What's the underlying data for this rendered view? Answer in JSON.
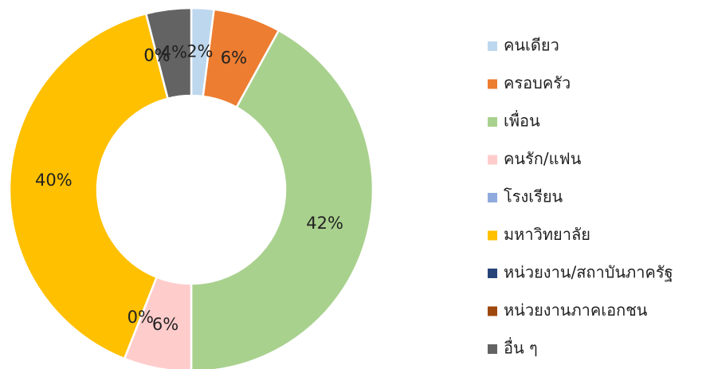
{
  "chart_data": {
    "type": "donut",
    "categories": [
      "คนเดียว",
      "ครอบครัว",
      "เพื่อน",
      "คนรัก/แฟน",
      "โรงเรียน",
      "มหาวิทยาลัย",
      "หน่วยงาน/สถาบันภาครัฐ",
      "หน่วยงานภาคเอกชน",
      "อื่น ๆ"
    ],
    "values": [
      2,
      6,
      42,
      6,
      0,
      40,
      0,
      0,
      4
    ],
    "value_labels": [
      "2%",
      "6%",
      "42%",
      "6%",
      "0%",
      "40%",
      "0%",
      "0%",
      "4%"
    ],
    "colors": [
      "#bdd7ee",
      "#ed7d31",
      "#a9d18e",
      "#ffcccc",
      "#8faadc",
      "#ffc000",
      "#264478",
      "#9e480e",
      "#636363"
    ],
    "legend": "right"
  }
}
